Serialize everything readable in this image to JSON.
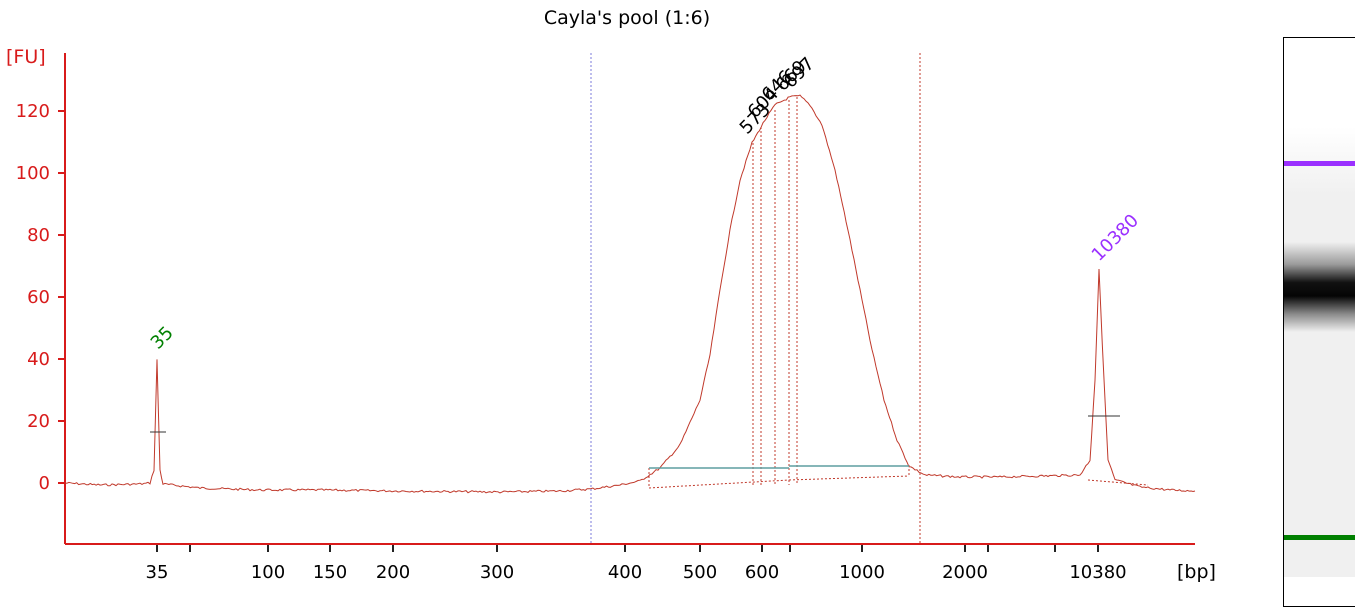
{
  "chart_data": {
    "type": "line",
    "title": "Cayla's pool (1:6)",
    "ylabel": "[FU]",
    "xlabel": "[bp]",
    "ylim": [
      -18,
      135
    ],
    "y_ticks": [
      0,
      20,
      40,
      60,
      80,
      100,
      120
    ],
    "x_ticks": [
      {
        "label": "35"
      },
      {
        "label": ""
      },
      {
        "label": "100"
      },
      {
        "label": "150"
      },
      {
        "label": "200"
      },
      {
        "label": "300"
      },
      {
        "label": "400"
      },
      {
        "label": "500"
      },
      {
        "label": "600"
      },
      {
        "label": ""
      },
      {
        "label": "1000"
      },
      {
        "label": "2000"
      },
      {
        "label": ""
      },
      {
        "label": ""
      },
      {
        "label": "10380"
      }
    ],
    "marker_peaks": [
      {
        "label": "35",
        "size_bp": 35,
        "height_fu": 40,
        "color": "#008000"
      },
      {
        "label": "10380",
        "size_bp": 10380,
        "height_fu": 68,
        "color": "#9b30ff"
      }
    ],
    "sample_peak_labels": [
      "573",
      "604",
      "646",
      "669",
      "697"
    ],
    "region_boundaries": [
      "left-dotted-line",
      "right-dotted-line"
    ],
    "colors": {
      "trace": "#c0392b",
      "axis": "#d81b1b",
      "baseline": "#5f9ea0",
      "boundary": "#7b7bdb",
      "lower_marker": "#008000",
      "upper_marker": "#9b30ff"
    }
  },
  "gel": {
    "upper_marker_color": "#9b30ff",
    "lower_marker_color": "#008000"
  }
}
